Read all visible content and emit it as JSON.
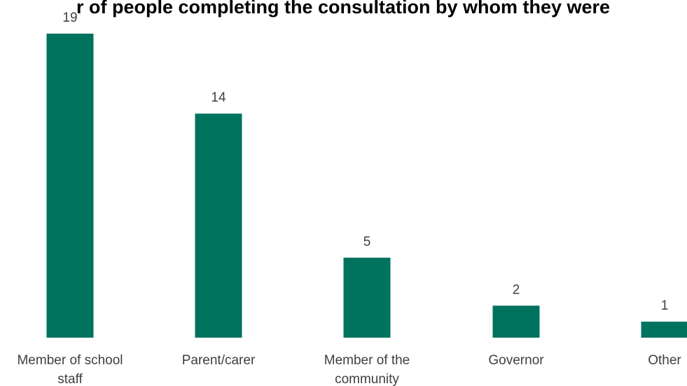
{
  "chart_data": {
    "type": "bar",
    "title": "r of people completing the consultation by whom they were",
    "categories": [
      [
        "Member of school",
        "staff"
      ],
      [
        "Parent/carer"
      ],
      [
        "Member of the",
        "community"
      ],
      [
        "Governor"
      ],
      [
        "Other"
      ]
    ],
    "values": [
      19,
      14,
      5,
      2,
      1
    ],
    "ylim": [
      0,
      19
    ],
    "grid": false,
    "legend": false,
    "bar_color": "#00735F"
  }
}
